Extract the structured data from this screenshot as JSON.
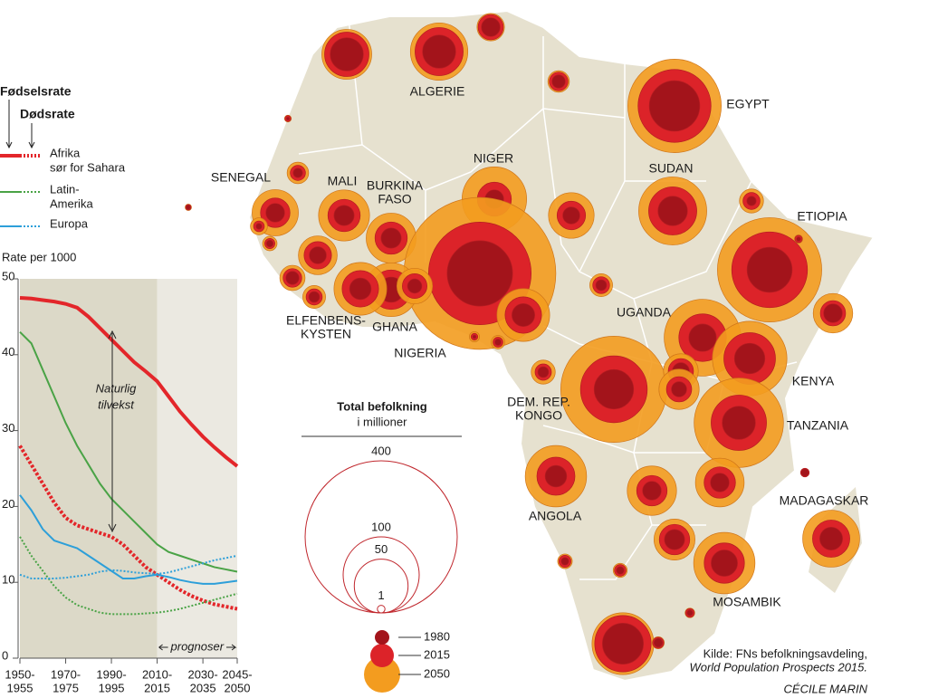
{
  "chart_data": [
    {
      "type": "line",
      "legend_title_birth": "Fødselsrate",
      "legend_title_death": "Dødsrate",
      "ylabel": "Rate per 1000",
      "annotation": [
        "Naturlig",
        "tilvekst"
      ],
      "forecast_label": "prognoser",
      "forecast_start": 2010,
      "x": [
        1950,
        1955,
        1960,
        1965,
        1970,
        1975,
        1980,
        1985,
        1990,
        1995,
        2000,
        2005,
        2010,
        2015,
        2020,
        2025,
        2030,
        2035,
        2040,
        2045
      ],
      "xlim": [
        1950,
        2045
      ],
      "xticks": [
        {
          "value": 1950,
          "label": [
            "1950-",
            "1955"
          ]
        },
        {
          "value": 1970,
          "label": [
            "1970-",
            "1975"
          ]
        },
        {
          "value": 1990,
          "label": [
            "1990-",
            "1995"
          ]
        },
        {
          "value": 2010,
          "label": [
            "2010-",
            "2015"
          ]
        },
        {
          "value": 2030,
          "label": [
            "2030-",
            "2035"
          ]
        },
        {
          "value": 2045,
          "label": [
            "2045-",
            "2050"
          ]
        }
      ],
      "ylim": [
        0,
        50
      ],
      "yticks": [
        0,
        10,
        20,
        30,
        40,
        50
      ],
      "series": [
        {
          "name": [
            "Afrika",
            "sør for Sahara"
          ],
          "color": "#e3262a",
          "birth": [
            47.5,
            47.4,
            47.2,
            47,
            46.7,
            46.2,
            45,
            43.5,
            42,
            40.5,
            39,
            37.8,
            36.5,
            34.5,
            32.5,
            30.8,
            29.2,
            27.8,
            26.5,
            25.3
          ],
          "death": [
            28,
            25.5,
            23,
            20.5,
            18.5,
            17.5,
            17,
            16.5,
            16,
            15,
            13.5,
            12,
            11,
            10,
            9,
            8.2,
            7.6,
            7.1,
            6.8,
            6.5
          ]
        },
        {
          "name": [
            "Latin-",
            "Amerika"
          ],
          "color": "#4aa346",
          "birth": [
            43,
            41.5,
            38,
            34.5,
            31,
            28,
            25.5,
            23,
            21,
            19.5,
            18,
            16.5,
            15,
            14,
            13.5,
            13,
            12.5,
            12,
            11.7,
            11.4
          ],
          "death": [
            16,
            13.5,
            11.5,
            9.5,
            8,
            7,
            6.5,
            6,
            5.8,
            5.8,
            5.8,
            5.9,
            6,
            6.2,
            6.5,
            6.9,
            7.3,
            7.7,
            8.1,
            8.5
          ]
        },
        {
          "name": [
            "Europa"
          ],
          "color": "#2d9fd9",
          "birth": [
            21.5,
            19.5,
            17,
            15.5,
            15,
            14.5,
            13.5,
            12.5,
            11.5,
            10.5,
            10.5,
            10.8,
            11,
            10.7,
            10.3,
            10,
            9.8,
            9.8,
            10,
            10.2
          ],
          "death": [
            11,
            10.5,
            10.5,
            10.5,
            10.6,
            10.8,
            11,
            11.4,
            11.6,
            11.5,
            11.3,
            11.2,
            11.1,
            11.3,
            11.7,
            12.1,
            12.5,
            12.9,
            13.2,
            13.5
          ]
        }
      ]
    },
    {
      "type": "bubble",
      "legend_title": "Total befolkning",
      "legend_subtitle": "i millioner",
      "size_legend": [
        400,
        100,
        50,
        1
      ],
      "source": "Kilde: FNs befolkningsavdeling,",
      "source_title": "World Population Prospects 2015.",
      "credit": "CÉCILE MARIN",
      "categories": [
        "ALGERIE",
        "EGYPT",
        "SUDAN",
        "ETIOPIA",
        "NIGER",
        "MALI",
        [
          "BURKINA",
          "FASO"
        ],
        "SENEGAL",
        "NIGERIA",
        "GHANA",
        [
          "ELFENBENS-",
          "KYSTEN"
        ],
        [
          "DEM. REP.",
          "KONGO"
        ],
        "UGANDA",
        "KENYA",
        "TANZANIA",
        "ANGOLA",
        "MOSAMBIK",
        "MADAGASKAR",
        null,
        null,
        null,
        null,
        null,
        null,
        null,
        null,
        null,
        null,
        null,
        null,
        null,
        null,
        null,
        null,
        null,
        null,
        null,
        null,
        null,
        null,
        null,
        null,
        null,
        null,
        null,
        null,
        null,
        null,
        null,
        null
      ],
      "series": [
        {
          "name": "1980",
          "color": "#a3141b",
          "values": [
            19,
            44,
            15,
            35,
            6,
            7,
            7,
            6,
            74,
            11,
            8,
            27,
            13,
            16,
            19,
            8,
            12,
            9,
            19,
            6,
            3,
            29,
            9,
            5,
            6,
            5,
            6,
            6,
            7,
            1.5,
            3,
            2,
            3.5,
            5,
            4,
            2,
            2,
            1.5,
            1,
            1,
            0.6,
            0.8,
            0.15,
            0.3,
            1.3,
            0.6,
            1,
            0.2,
            0.7,
            0.3
          ]
        },
        {
          "name": "2015",
          "color": "#dc2329",
          "values": [
            40,
            92,
            40,
            99,
            20,
            18,
            18,
            15,
            182,
            27,
            23,
            77,
            39,
            46,
            53,
            25,
            28,
            24,
            34,
            11,
            6,
            55,
            23,
            14,
            11,
            13,
            16,
            17,
            16,
            4,
            6,
            4.5,
            10.5,
            11,
            11,
            4.6,
            4.9,
            5,
            2.5,
            2.3,
            2,
            1.8,
            0.6,
            0.5,
            2.1,
            1.3,
            1.3,
            0.8,
            1.7,
            0.9
          ]
        },
        {
          "name": "2050",
          "color": "#f39c1f",
          "values": [
            57,
            151,
            80,
            188,
            72,
            45,
            43,
            37,
            399,
            50,
            48,
            195,
            102,
            96,
            138,
            65,
            65,
            56,
            43,
            13,
            8,
            66,
            48,
            36,
            27,
            26,
            42,
            41,
            29,
            8,
            11,
            9,
            22,
            21,
            28,
            10,
            9,
            10,
            3.7,
            3.4,
            5,
            3.6,
            0.8,
            0.7,
            2.5,
            1.6,
            1.2,
            1.8,
            3.2,
            1.2
          ]
        }
      ]
    }
  ]
}
